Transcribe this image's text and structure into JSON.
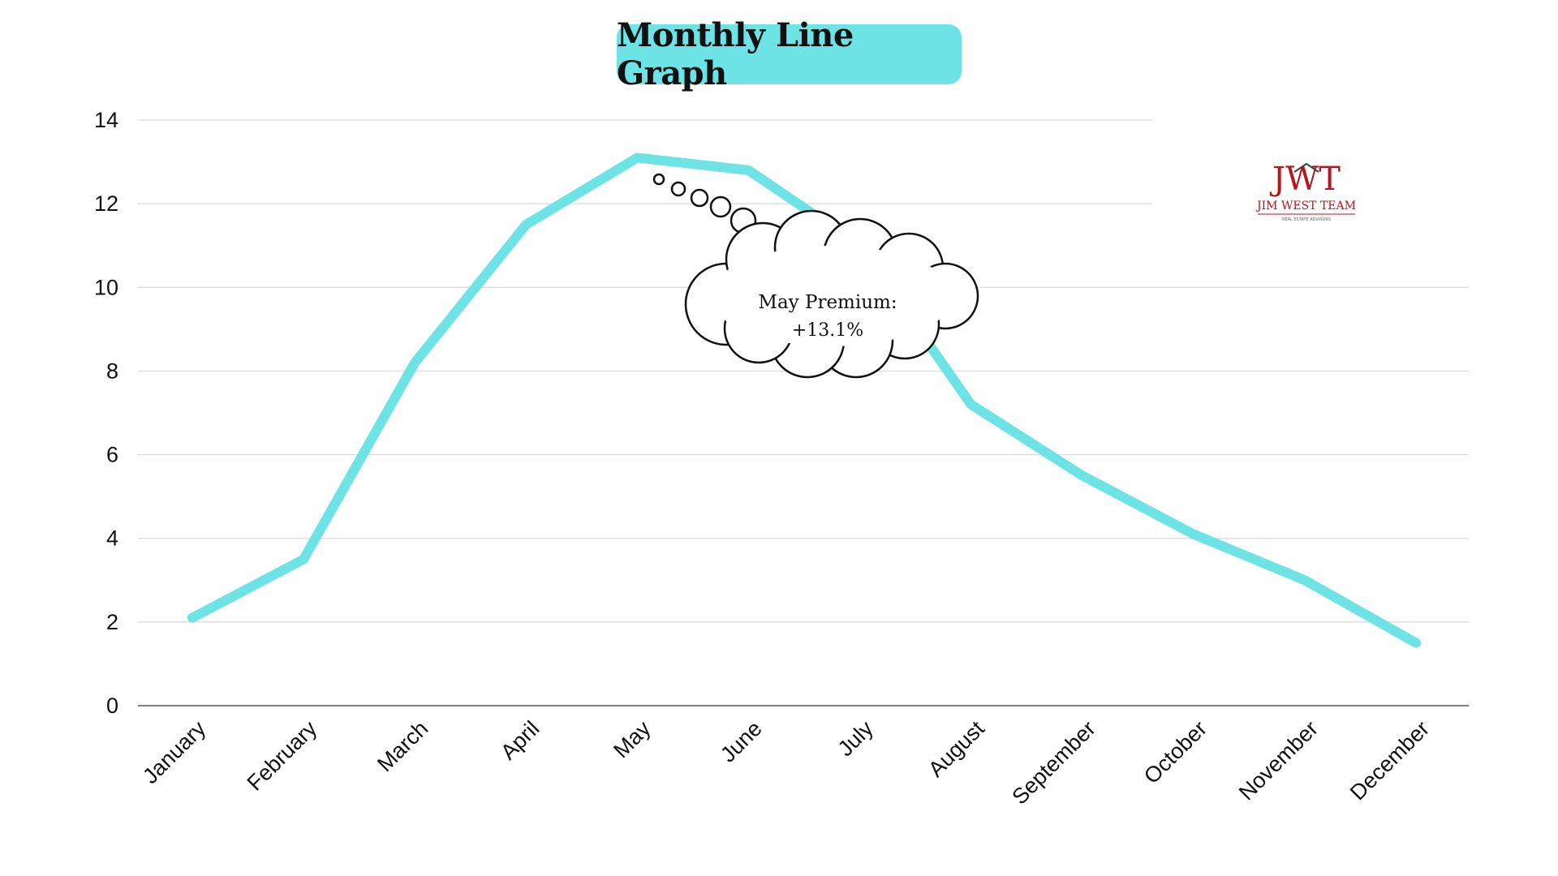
{
  "chart_data": {
    "type": "line",
    "title": "Monthly Line Graph",
    "xlabel": "",
    "ylabel": "",
    "categories": [
      "January",
      "February",
      "March",
      "April",
      "May",
      "June",
      "July",
      "August",
      "September",
      "October",
      "November",
      "December"
    ],
    "series": [
      {
        "values": [
          2.1,
          3.5,
          8.2,
          11.5,
          13.1,
          12.8,
          11.0,
          7.2,
          5.5,
          4.1,
          3.0,
          1.5
        ]
      }
    ],
    "ylim": [
      0,
      14
    ],
    "yticks": [
      0,
      2,
      4,
      6,
      8,
      10,
      12,
      14
    ],
    "grid": true,
    "line_color": "#6ee3e6",
    "annotation": {
      "text_line1": "May Premium:",
      "text_line2": "+13.1%",
      "shape": "thought-bubble"
    }
  },
  "logo": {
    "letters": "JWT",
    "name": "JIM WEST TEAM",
    "tagline": "REAL ESTATE ADVISORS",
    "color": "#b3161f"
  }
}
